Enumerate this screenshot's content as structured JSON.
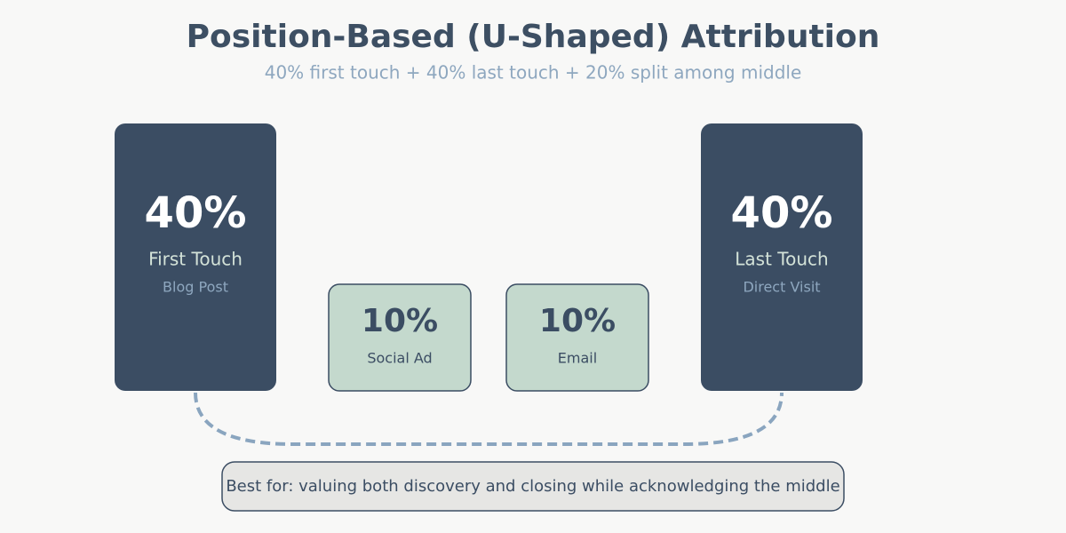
{
  "header": {
    "title": "Position-Based (U-Shaped) Attribution",
    "subtitle": "40% first touch + 40% last touch + 20% split among middle"
  },
  "nodes": [
    {
      "percentage": "40%",
      "label": "First Touch",
      "sublabel": "Blog Post"
    },
    {
      "percentage": "10%",
      "label": "Social Ad"
    },
    {
      "percentage": "10%",
      "label": "Email"
    },
    {
      "percentage": "40%",
      "label": "Last Touch",
      "sublabel": "Direct Visit"
    }
  ],
  "footer": {
    "note": "Best for: valuing both discovery and closing while acknowledging the middle"
  }
}
